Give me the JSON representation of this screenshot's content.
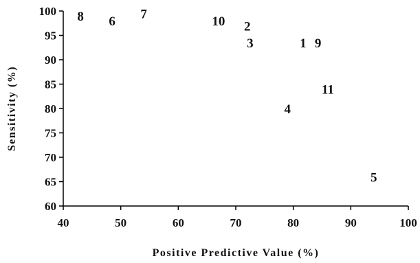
{
  "chart_data": {
    "type": "scatter",
    "title": "",
    "xlabel": "Positive Predictive Value (%)",
    "ylabel": "Sensitivity (%)",
    "xlim": [
      40,
      100
    ],
    "ylim": [
      60,
      100
    ],
    "xticks": [
      40,
      50,
      60,
      70,
      80,
      90,
      100
    ],
    "yticks": [
      60,
      65,
      70,
      75,
      80,
      85,
      90,
      95,
      100
    ],
    "grid": false,
    "marker": "text-label",
    "points": [
      {
        "label": "8",
        "x": 43,
        "y": 99
      },
      {
        "label": "6",
        "x": 48.5,
        "y": 98
      },
      {
        "label": "7",
        "x": 54,
        "y": 99.5
      },
      {
        "label": "10",
        "x": 67,
        "y": 98
      },
      {
        "label": "2",
        "x": 72,
        "y": 97
      },
      {
        "label": "3",
        "x": 72.5,
        "y": 93.5
      },
      {
        "label": "1",
        "x": 81.7,
        "y": 93.5
      },
      {
        "label": "9",
        "x": 84.3,
        "y": 93.5
      },
      {
        "label": "11",
        "x": 86,
        "y": 84
      },
      {
        "label": "4",
        "x": 79,
        "y": 80
      },
      {
        "label": "5",
        "x": 94,
        "y": 66
      }
    ]
  }
}
